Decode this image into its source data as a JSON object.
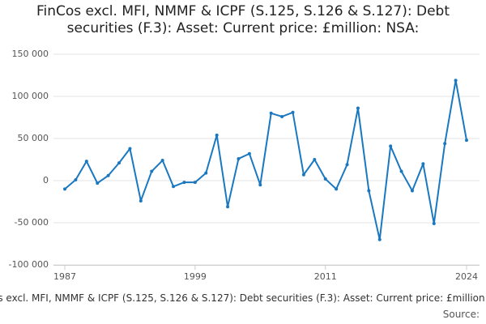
{
  "chart_data": {
    "type": "line",
    "title": "FinCos excl. MFI, NMMF & ICPF (S.125, S.126 & S.127): Debt securities (F.3): Asset: Current price: £million: NSA:",
    "source_label": "Source:",
    "x": [
      1987,
      1988,
      1989,
      1990,
      1991,
      1992,
      1993,
      1994,
      1995,
      1996,
      1997,
      1998,
      1999,
      2000,
      2001,
      2002,
      2003,
      2004,
      2005,
      2006,
      2007,
      2008,
      2009,
      2010,
      2011,
      2012,
      2013,
      2014,
      2015,
      2016,
      2017,
      2018,
      2019,
      2020,
      2021,
      2022,
      2023,
      2024
    ],
    "values": [
      -10000,
      1000,
      23000,
      -3000,
      6000,
      21000,
      38000,
      -24000,
      11000,
      24000,
      -7000,
      -2000,
      -2000,
      9000,
      54000,
      -31000,
      26000,
      32000,
      -5000,
      80000,
      76000,
      81000,
      7000,
      25000,
      2000,
      -10000,
      19000,
      86000,
      -12000,
      -70000,
      41000,
      11000,
      -12000,
      20000,
      -51000,
      44000,
      119000,
      48000
    ],
    "color": "#1a78c0",
    "xlim": [
      1987,
      2024
    ],
    "xticks": [
      1987,
      1999,
      2011,
      2024
    ],
    "ylim": [
      -100000,
      150000
    ],
    "yticks": [
      {
        "value": -100000,
        "label": "-100 000"
      },
      {
        "value": -50000,
        "label": "-50 000"
      },
      {
        "value": 0,
        "label": "0"
      },
      {
        "value": 50000,
        "label": "50 000"
      },
      {
        "value": 100000,
        "label": "100 000"
      },
      {
        "value": 150000,
        "label": "150 000"
      }
    ],
    "grid": true
  }
}
